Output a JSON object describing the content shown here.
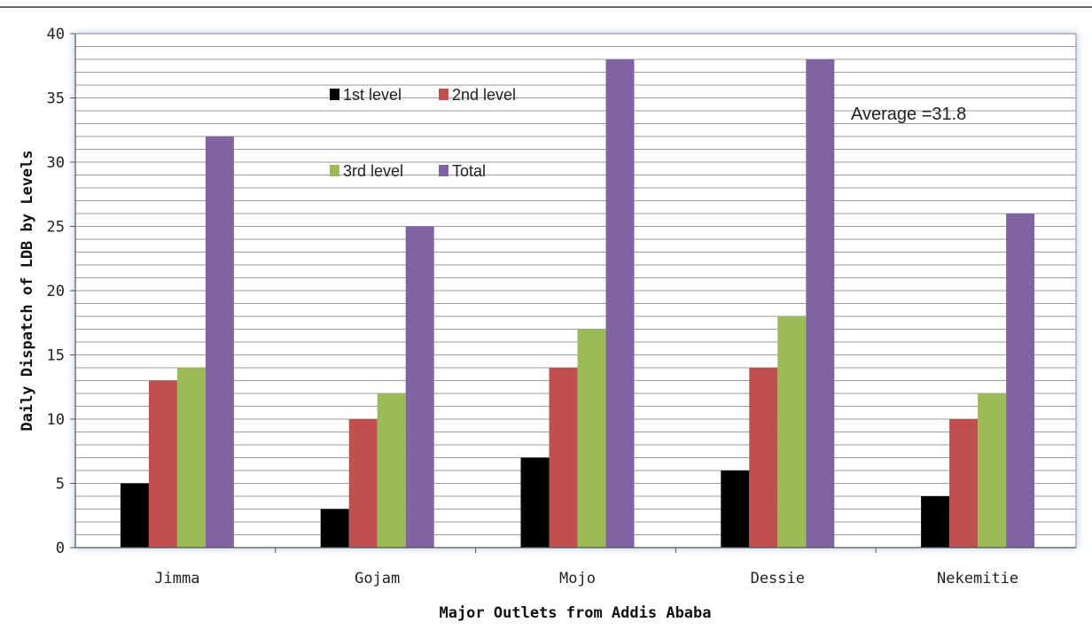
{
  "chart_data": {
    "type": "bar",
    "categories": [
      "Jimma",
      "Gojam",
      "Mojo",
      "Dessie",
      "Nekemitie"
    ],
    "series": [
      {
        "name": "1st level",
        "values": [
          5,
          3,
          7,
          6,
          4
        ],
        "color": "#000000"
      },
      {
        "name": "2nd level",
        "values": [
          13,
          10,
          14,
          14,
          10
        ],
        "color": "#c0504d"
      },
      {
        "name": "3rd level",
        "values": [
          14,
          12,
          17,
          18,
          12
        ],
        "color": "#9bbb59"
      },
      {
        "name": "Total",
        "values": [
          32,
          25,
          38,
          38,
          26
        ],
        "color": "#8064a2"
      }
    ],
    "xlabel": "Major Outlets from Addis Ababa",
    "ylabel": "Daily Dispatch of LDB by Levels",
    "ylim": [
      0,
      40
    ],
    "yticks": [
      0,
      5,
      10,
      15,
      20,
      25,
      30,
      35,
      40
    ],
    "ytick_labels": [
      "0",
      "5",
      "10",
      "15",
      "20",
      "25",
      "30",
      "35",
      "40"
    ],
    "grid": true,
    "legend_position": "top-center",
    "annotation": "Average =31.8"
  }
}
